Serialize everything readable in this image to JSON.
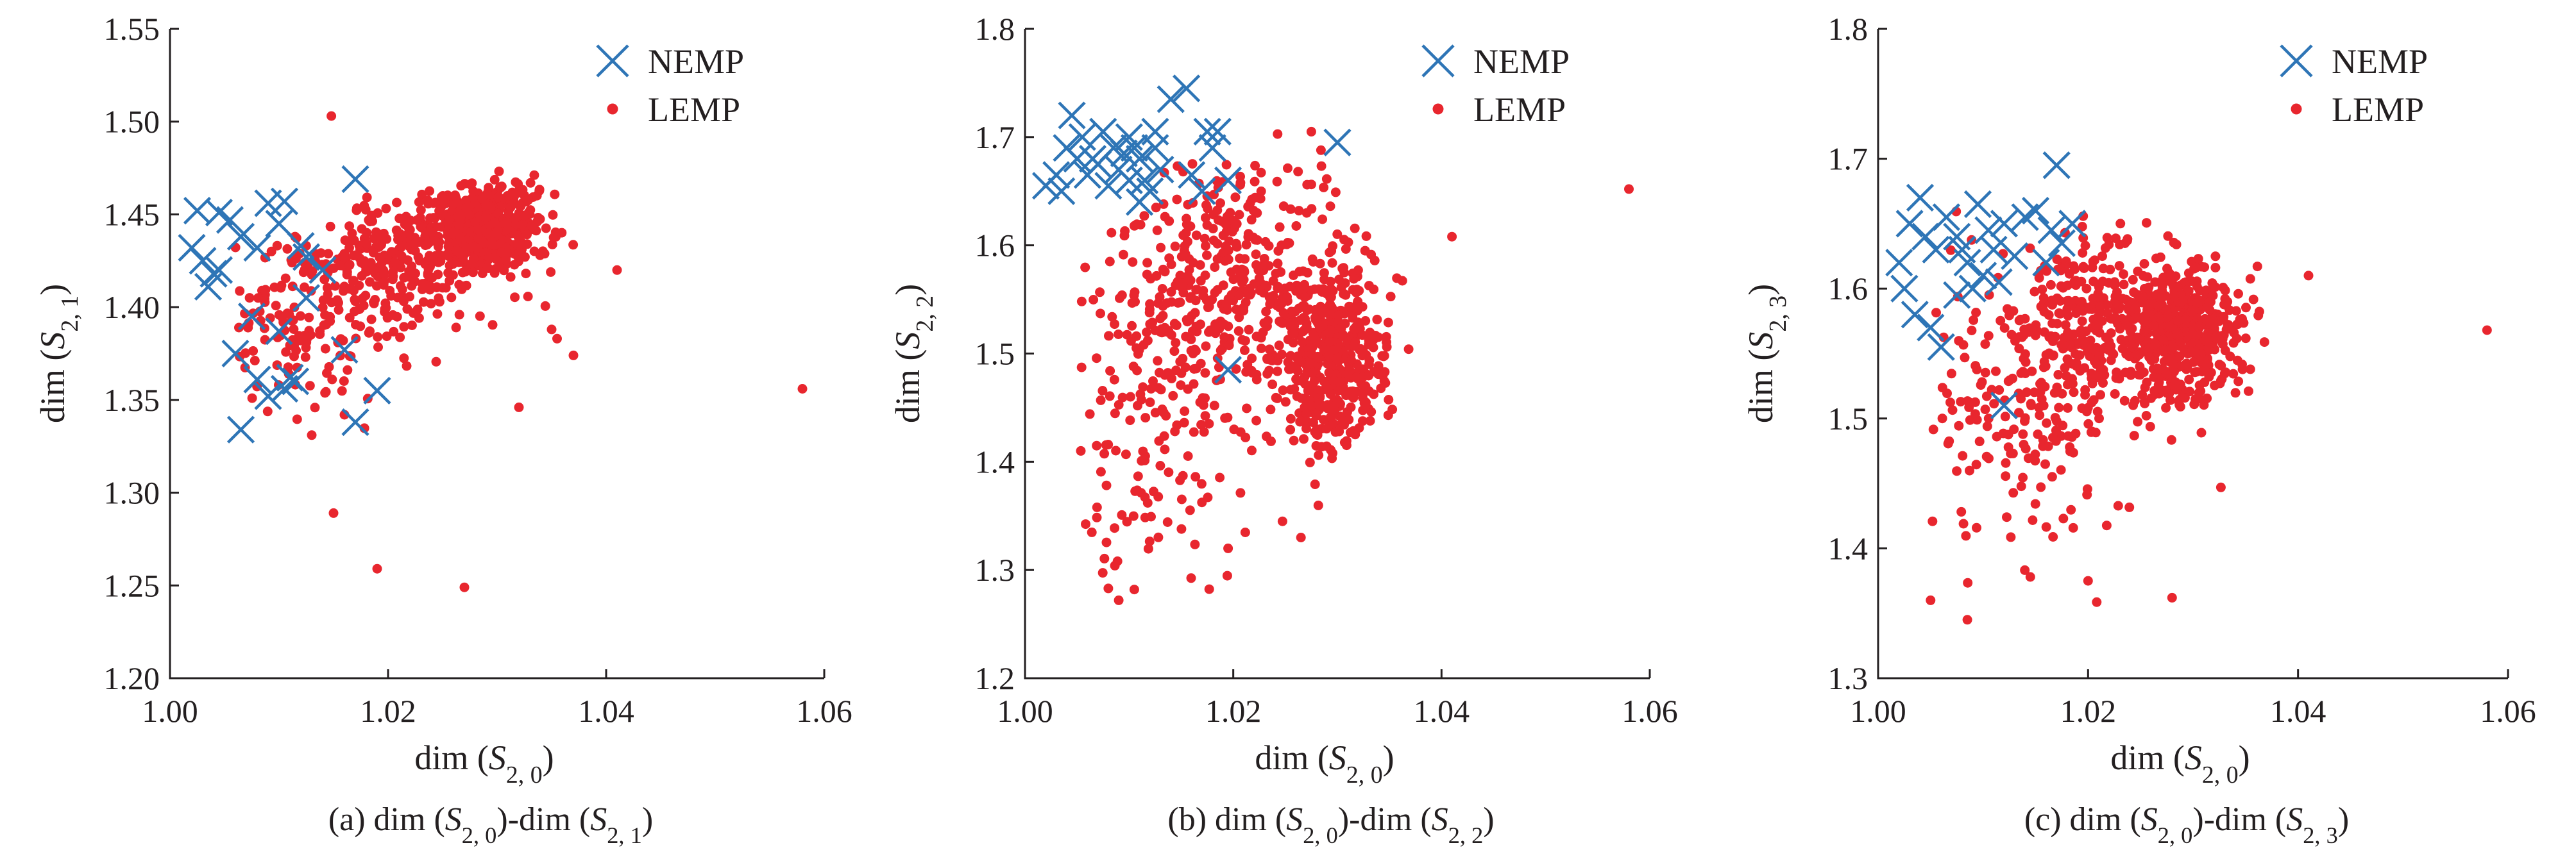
{
  "figure": {
    "colors": {
      "nemp": "#2e75b6",
      "lemp": "#e8262e",
      "axis": "#231f20"
    },
    "panels": [
      {
        "caption": "(a) dim (S2, 0)-dim (S2, 1)",
        "xlabel": "dim (S2, 0)",
        "ylabel": "dim (S2, 1)",
        "legend": [
          "NEMP",
          "LEMP"
        ]
      },
      {
        "caption": "(b) dim (S2, 0)-dim (S2, 2)",
        "xlabel": "dim (S2, 0)",
        "ylabel": "dim (S2, 2)",
        "legend": [
          "NEMP",
          "LEMP"
        ]
      },
      {
        "caption": "(c) dim (S2, 0)-dim (S2, 3)",
        "xlabel": "dim (S2, 0)",
        "ylabel": "dim (S2, 3)",
        "legend": [
          "NEMP",
          "LEMP"
        ]
      }
    ]
  },
  "chart_data": [
    {
      "type": "scatter",
      "xlabel": "dim (S2, 0)",
      "ylabel": "dim (S2, 1)",
      "xlim": [
        1.0,
        1.06
      ],
      "ylim": [
        1.2,
        1.55
      ],
      "xticks": [
        "1.00",
        "1.02",
        "1.04",
        "1.06"
      ],
      "yticks": [
        "1.20",
        "1.25",
        "1.30",
        "1.35",
        "1.40",
        "1.45",
        "1.50",
        "1.55"
      ],
      "legend_position": "top-right",
      "series": [
        {
          "name": "NEMP",
          "marker": "x",
          "color": "#2e75b6",
          "points": [
            [
              1.0025,
              1.452
            ],
            [
              1.0045,
              1.451
            ],
            [
              1.0055,
              1.447
            ],
            [
              1.009,
              1.456
            ],
            [
              1.0105,
              1.457
            ],
            [
              1.002,
              1.432
            ],
            [
              1.003,
              1.425
            ],
            [
              1.004,
              1.418
            ],
            [
              1.0035,
              1.411
            ],
            [
              1.0065,
              1.438
            ],
            [
              1.008,
              1.432
            ],
            [
              1.01,
              1.445
            ],
            [
              1.012,
              1.433
            ],
            [
              1.0125,
              1.427
            ],
            [
              1.014,
              1.42
            ],
            [
              1.006,
              1.375
            ],
            [
              1.008,
              1.361
            ],
            [
              1.009,
              1.352
            ],
            [
              1.011,
              1.362
            ],
            [
              1.0105,
              1.356
            ],
            [
              1.0065,
              1.334
            ],
            [
              1.017,
              1.469
            ],
            [
              1.016,
              1.377
            ],
            [
              1.019,
              1.355
            ],
            [
              1.017,
              1.338
            ],
            [
              1.01,
              1.387
            ],
            [
              1.0075,
              1.395
            ],
            [
              1.0125,
              1.405
            ],
            [
              1.0045,
              1.42
            ],
            [
              1.0115,
              1.36
            ]
          ]
        },
        {
          "name": "LEMP",
          "marker": "dot",
          "color": "#e8262e",
          "generator": {
            "n": 900,
            "seed": 7,
            "clusters": [
              {
                "weight": 0.55,
                "mx": 1.029,
                "my": 1.443,
                "sx": 0.0026,
                "sy": 0.011
              },
              {
                "weight": 0.3,
                "mx": 1.021,
                "my": 1.425,
                "sx": 0.0045,
                "sy": 0.018
              },
              {
                "weight": 0.15,
                "mx": 1.012,
                "my": 1.39,
                "sx": 0.004,
                "sy": 0.022
              }
            ],
            "xclip": [
              1.006,
              1.038
            ],
            "yclip": [
              1.325,
              1.48
            ]
          },
          "outliers": [
            [
              1.058,
              1.356
            ],
            [
              1.0148,
              1.503
            ],
            [
              1.015,
              1.289
            ],
            [
              1.019,
              1.259
            ],
            [
              1.027,
              1.249
            ],
            [
              1.041,
              1.42
            ],
            [
              1.032,
              1.346
            ],
            [
              1.0355,
              1.383
            ],
            [
              1.037,
              1.374
            ],
            [
              1.035,
              1.388
            ],
            [
              1.013,
              1.331
            ],
            [
              1.016,
              1.342
            ]
          ]
        }
      ]
    },
    {
      "type": "scatter",
      "xlabel": "dim (S2, 0)",
      "ylabel": "dim (S2, 2)",
      "xlim": [
        1.0,
        1.06
      ],
      "ylim": [
        1.2,
        1.8
      ],
      "xticks": [
        "1.00",
        "1.02",
        "1.04",
        "1.06"
      ],
      "yticks": [
        "1.2",
        "1.3",
        "1.4",
        "1.5",
        "1.6",
        "1.7",
        "1.8"
      ],
      "legend_position": "top-right",
      "series": [
        {
          "name": "NEMP",
          "marker": "x",
          "color": "#2e75b6",
          "points": [
            [
              1.003,
              1.665
            ],
            [
              1.004,
              1.69
            ],
            [
              1.0045,
              1.72
            ],
            [
              1.0055,
              1.7
            ],
            [
              1.0065,
              1.68
            ],
            [
              1.0075,
              1.705
            ],
            [
              1.0085,
              1.69
            ],
            [
              1.009,
              1.67
            ],
            [
              1.01,
              1.7
            ],
            [
              1.011,
              1.68
            ],
            [
              1.0115,
              1.66
            ],
            [
              1.0125,
              1.705
            ],
            [
              1.013,
              1.67
            ],
            [
              1.0035,
              1.65
            ],
            [
              1.002,
              1.655
            ],
            [
              1.006,
              1.665
            ],
            [
              1.008,
              1.655
            ],
            [
              1.0095,
              1.685
            ],
            [
              1.0105,
              1.69
            ],
            [
              1.012,
              1.65
            ],
            [
              1.014,
              1.735
            ],
            [
              1.0155,
              1.745
            ],
            [
              1.0175,
              1.705
            ],
            [
              1.0185,
              1.705
            ],
            [
              1.016,
              1.665
            ],
            [
              1.017,
              1.65
            ],
            [
              1.0195,
              1.66
            ],
            [
              1.018,
              1.69
            ],
            [
              1.03,
              1.695
            ],
            [
              1.0195,
              1.485
            ],
            [
              1.011,
              1.64
            ],
            [
              1.007,
              1.675
            ],
            [
              1.005,
              1.68
            ],
            [
              1.01,
              1.66
            ],
            [
              1.0125,
              1.69
            ]
          ]
        },
        {
          "name": "LEMP",
          "marker": "dot",
          "color": "#e8262e",
          "generator": {
            "n": 950,
            "seed": 11,
            "clusters": [
              {
                "weight": 0.45,
                "mx": 1.029,
                "my": 1.5,
                "sx": 0.0028,
                "sy": 0.045
              },
              {
                "weight": 0.35,
                "mx": 1.02,
                "my": 1.57,
                "sx": 0.005,
                "sy": 0.055
              },
              {
                "weight": 0.2,
                "mx": 1.012,
                "my": 1.47,
                "sx": 0.0045,
                "sy": 0.09
              }
            ],
            "xclip": [
              1.005,
              1.037
            ],
            "yclip": [
              1.275,
              1.705
            ]
          },
          "outliers": [
            [
              1.058,
              1.652
            ],
            [
              1.041,
              1.608
            ],
            [
              1.009,
              1.272
            ],
            [
              1.008,
              1.283
            ],
            [
              1.0105,
              1.282
            ],
            [
              1.0195,
              1.32
            ],
            [
              1.0265,
              1.33
            ],
            [
              1.0275,
              1.705
            ]
          ]
        }
      ]
    },
    {
      "type": "scatter",
      "xlabel": "dim (S2, 0)",
      "ylabel": "dim (S2, 3)",
      "xlim": [
        1.0,
        1.06
      ],
      "ylim": [
        1.3,
        1.8
      ],
      "xticks": [
        "1.00",
        "1.02",
        "1.04",
        "1.06"
      ],
      "yticks": [
        "1.3",
        "1.4",
        "1.5",
        "1.6",
        "1.7",
        "1.8"
      ],
      "legend_position": "top-right",
      "series": [
        {
          "name": "NEMP",
          "marker": "x",
          "color": "#2e75b6",
          "points": [
            [
              1.002,
              1.62
            ],
            [
              1.003,
              1.65
            ],
            [
              1.004,
              1.67
            ],
            [
              1.0045,
              1.64
            ],
            [
              1.0055,
              1.63
            ],
            [
              1.0065,
              1.655
            ],
            [
              1.0075,
              1.64
            ],
            [
              1.0085,
              1.62
            ],
            [
              1.0095,
              1.665
            ],
            [
              1.0105,
              1.645
            ],
            [
              1.011,
              1.63
            ],
            [
              1.012,
              1.65
            ],
            [
              1.013,
              1.625
            ],
            [
              1.014,
              1.655
            ],
            [
              1.015,
              1.66
            ],
            [
              1.0165,
              1.645
            ],
            [
              1.0175,
              1.635
            ],
            [
              1.0185,
              1.65
            ],
            [
              1.017,
              1.695
            ],
            [
              1.0035,
              1.58
            ],
            [
              1.005,
              1.57
            ],
            [
              1.006,
              1.555
            ],
            [
              1.0075,
              1.595
            ],
            [
              1.009,
              1.6
            ],
            [
              1.01,
              1.61
            ],
            [
              1.0115,
              1.605
            ],
            [
              1.012,
              1.51
            ],
            [
              1.0025,
              1.6
            ],
            [
              1.008,
              1.63
            ],
            [
              1.016,
              1.62
            ]
          ]
        },
        {
          "name": "LEMP",
          "marker": "dot",
          "color": "#e8262e",
          "generator": {
            "n": 950,
            "seed": 23,
            "clusters": [
              {
                "weight": 0.5,
                "mx": 1.029,
                "my": 1.565,
                "sx": 0.0028,
                "sy": 0.025
              },
              {
                "weight": 0.3,
                "mx": 1.02,
                "my": 1.575,
                "sx": 0.005,
                "sy": 0.03
              },
              {
                "weight": 0.2,
                "mx": 1.015,
                "my": 1.5,
                "sx": 0.006,
                "sy": 0.055
              }
            ],
            "xclip": [
              1.005,
              1.037
            ],
            "yclip": [
              1.355,
              1.665
            ]
          },
          "outliers": [
            [
              1.058,
              1.568
            ],
            [
              1.041,
              1.61
            ],
            [
              1.005,
              1.36
            ],
            [
              1.0085,
              1.345
            ],
            [
              1.02,
              1.375
            ],
            [
              1.028,
              1.362
            ],
            [
              1.0145,
              1.378
            ],
            [
              1.0305,
              1.623
            ]
          ]
        }
      ]
    }
  ]
}
